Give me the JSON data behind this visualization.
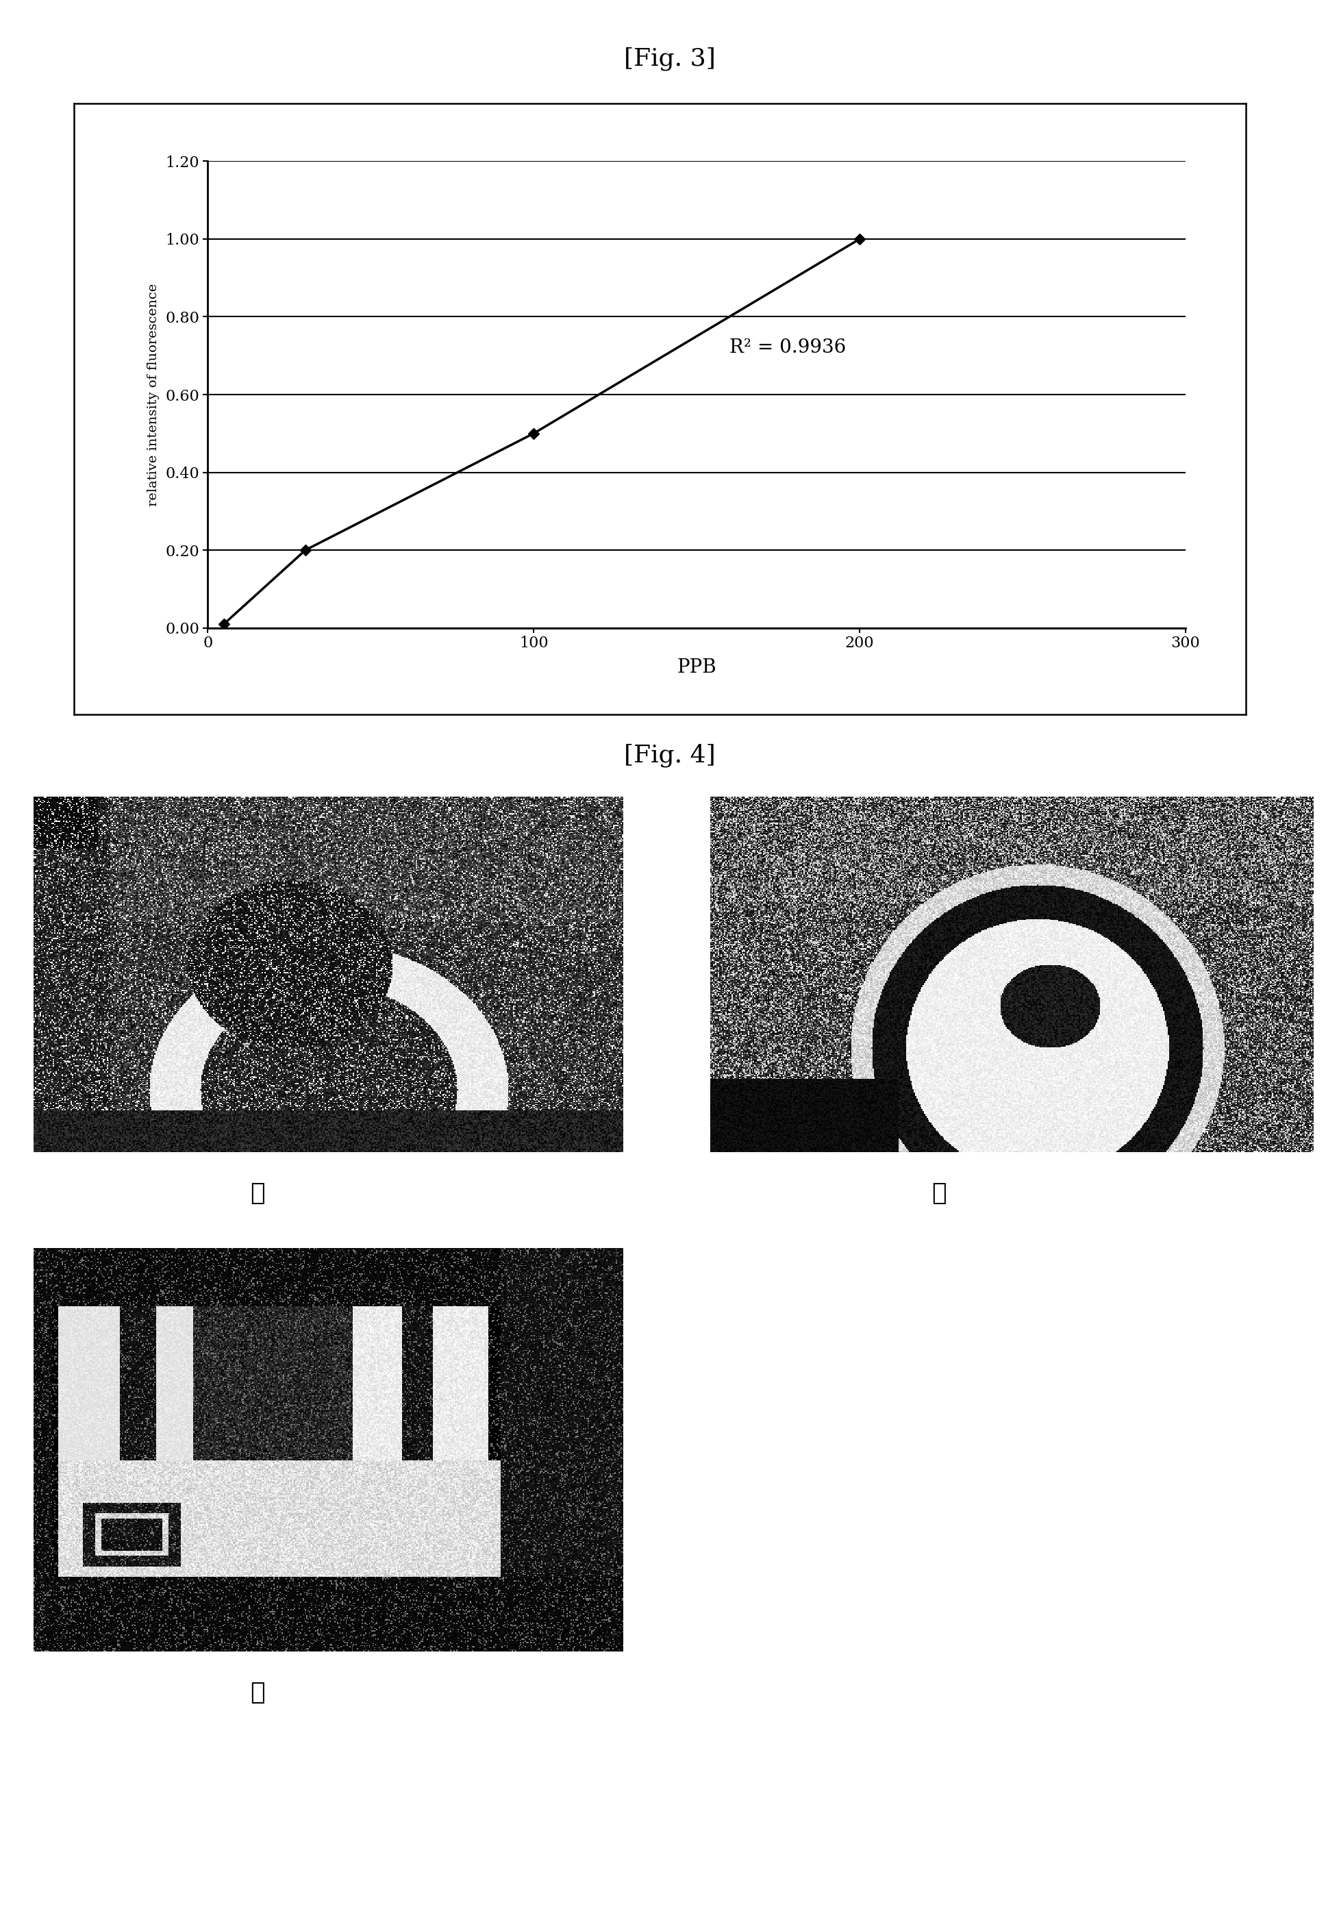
{
  "fig3_title": "[Fig. 3]",
  "fig4_title": "[Fig. 4]",
  "x_data": [
    5,
    30,
    100,
    200
  ],
  "y_data": [
    0.01,
    0.2,
    0.5,
    1.0
  ],
  "xlabel": "PPB",
  "ylabel": "relative intensity of fluorescence",
  "xlim": [
    0,
    300
  ],
  "ylim": [
    0.0,
    1.2
  ],
  "yticks": [
    0.0,
    0.2,
    0.4,
    0.6,
    0.8,
    1.0,
    1.2
  ],
  "xticks": [
    0,
    100,
    200,
    300
  ],
  "r_squared_text": "R² = 0.9936",
  "r_squared_x": 160,
  "r_squared_y": 0.72,
  "line_color": "#000000",
  "marker_color": "#000000",
  "background_color": "#ffffff",
  "label_1": "①",
  "label_2": "②",
  "label_3": "③",
  "font_size_title": 26,
  "font_size_tick": 16,
  "font_size_xlabel": 20,
  "font_size_ylabel": 14,
  "font_size_annotation": 20,
  "font_size_label": 26
}
